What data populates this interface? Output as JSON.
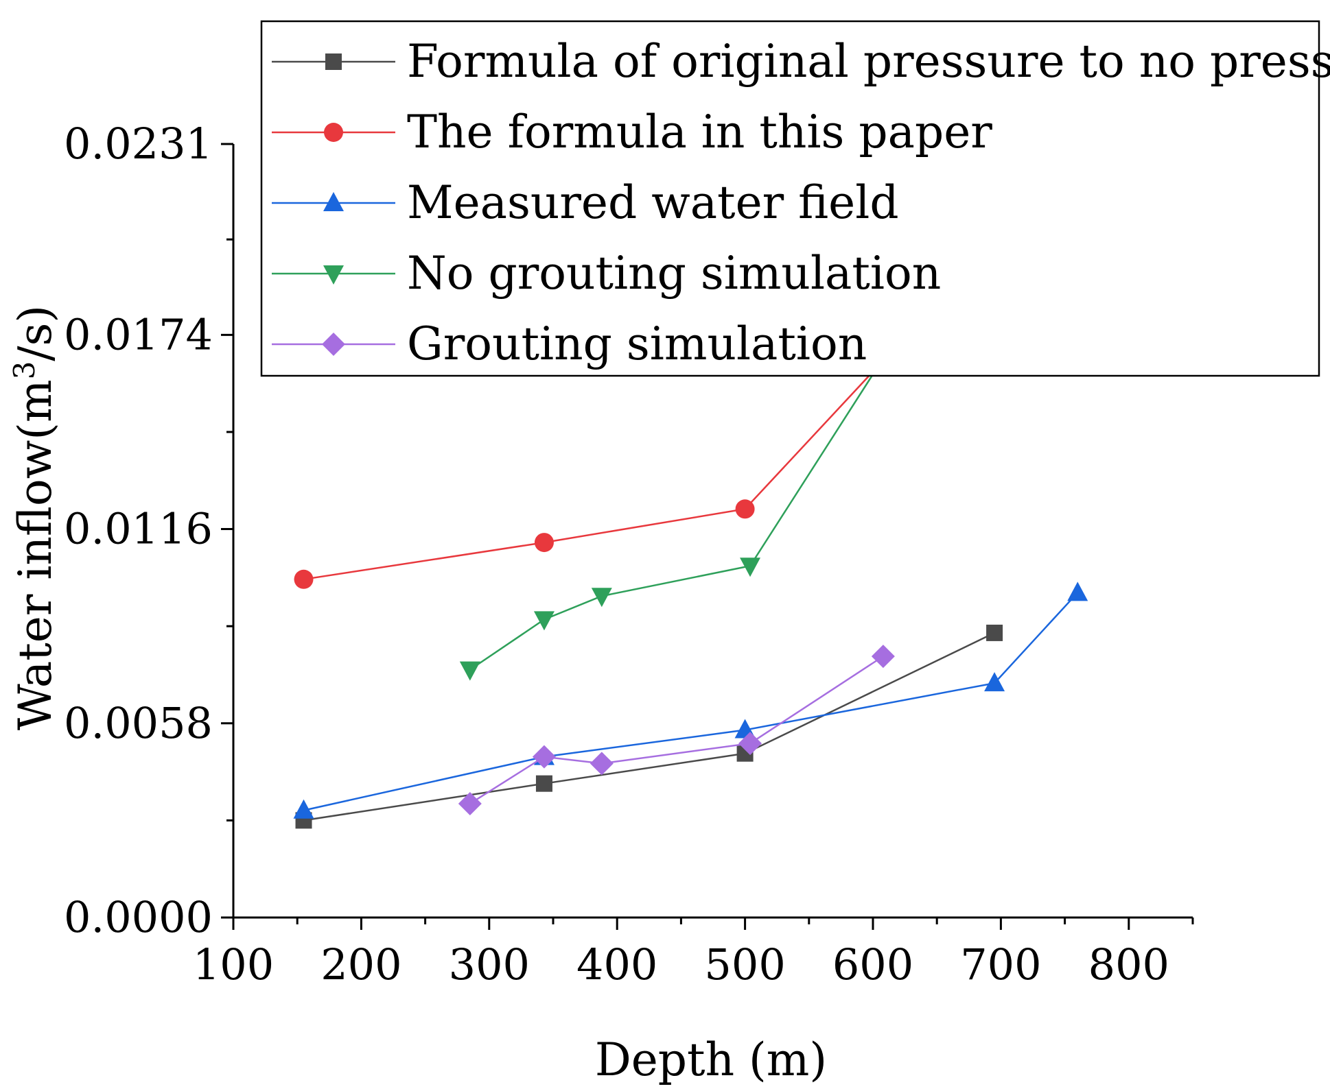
{
  "chart_data": {
    "type": "line",
    "title": "",
    "xlabel": "Depth (m)",
    "ylabel": "Water inflow(m3/s)",
    "ylabel_parts": {
      "main": "Water inflow(m",
      "sup": "3",
      "rest": "/s)"
    },
    "xlim": [
      100,
      850
    ],
    "ylim": [
      0,
      0.0231
    ],
    "x_ticks": [
      100,
      200,
      300,
      400,
      500,
      600,
      700,
      800
    ],
    "x_tick_labels": [
      "100",
      "200",
      "300",
      "400",
      "500",
      "600",
      "700",
      "800"
    ],
    "y_ticks": [
      0,
      0.0058,
      0.0116,
      0.0174,
      0.0231
    ],
    "y_tick_labels": [
      "0.0000",
      "0.0058",
      "0.0116",
      "0.0174",
      "0.0231"
    ],
    "grid": false,
    "legend_position": "top-right",
    "series": [
      {
        "name": "Formula of original pressure to no pressure",
        "marker": "square",
        "color": "#4a4a4a",
        "x": [
          155,
          343,
          500,
          695
        ],
        "y": [
          0.0029,
          0.004,
          0.0049,
          0.0085
        ]
      },
      {
        "name": "The formula in this paper",
        "marker": "circle",
        "color": "#e8383d",
        "x": [
          155,
          343,
          500,
          695
        ],
        "y": [
          0.0101,
          0.0112,
          0.0122,
          0.0202
        ]
      },
      {
        "name": "Measured water field",
        "marker": "triangle-up",
        "color": "#1a66dd",
        "x": [
          155,
          343,
          500,
          695,
          760
        ],
        "y": [
          0.0032,
          0.0048,
          0.0056,
          0.007,
          0.0097
        ]
      },
      {
        "name": "No grouting simulation",
        "marker": "triangle-down",
        "color": "#2ea05a",
        "x": [
          285,
          343,
          388,
          504,
          608
        ],
        "y": [
          0.0074,
          0.0089,
          0.0096,
          0.0105,
          0.0167
        ]
      },
      {
        "name": "Grouting simulation",
        "marker": "diamond",
        "color": "#a66ee0",
        "x": [
          285,
          343,
          388,
          504,
          608
        ],
        "y": [
          0.0034,
          0.0048,
          0.0046,
          0.0052,
          0.0078
        ]
      }
    ]
  }
}
